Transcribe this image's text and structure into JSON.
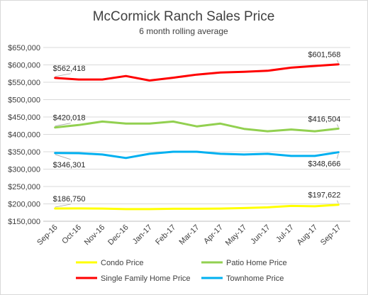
{
  "chart_data": {
    "type": "line",
    "title": "McCormick Ranch Sales Price",
    "subtitle": "6 month rolling average",
    "xlabel": "",
    "ylabel": "",
    "categories": [
      "Sep-16",
      "Oct-16",
      "Nov-16",
      "Dec-16",
      "Jan-17",
      "Feb-17",
      "Mar-17",
      "Apr-17",
      "May-17",
      "Jun-17",
      "Jul-17",
      "Aug-17",
      "Sep-17"
    ],
    "ylim": [
      150000,
      650000
    ],
    "yticks": [
      {
        "value": 150000,
        "label": "$150,000"
      },
      {
        "value": 200000,
        "label": "$200,000"
      },
      {
        "value": 250000,
        "label": "$250,000"
      },
      {
        "value": 300000,
        "label": "$300,000"
      },
      {
        "value": 350000,
        "label": "$350,000"
      },
      {
        "value": 400000,
        "label": "$400,000"
      },
      {
        "value": 450000,
        "label": "$450,000"
      },
      {
        "value": 500000,
        "label": "$500,000"
      },
      {
        "value": 550000,
        "label": "$550,000"
      },
      {
        "value": 600000,
        "label": "$600,000"
      },
      {
        "value": 650000,
        "label": "$650,000"
      }
    ],
    "grid": true,
    "legend_position": "bottom",
    "series": [
      {
        "name": "Condo Price",
        "color": "#ffff00",
        "values": [
          186750,
          187000,
          186500,
          185000,
          185000,
          186000,
          186000,
          186500,
          188000,
          190000,
          194000,
          193000,
          197622
        ],
        "labels": [
          {
            "index": 0,
            "text": "$186,750",
            "pos": "above"
          },
          {
            "index": 12,
            "text": "$197,622",
            "pos": "above"
          }
        ]
      },
      {
        "name": "Patio Home Price",
        "color": "#92d050",
        "values": [
          420018,
          427000,
          437000,
          431000,
          431000,
          437000,
          423000,
          431000,
          416000,
          409000,
          414000,
          409000,
          416504
        ],
        "labels": [
          {
            "index": 0,
            "text": "$420,018",
            "pos": "above"
          },
          {
            "index": 12,
            "text": "$416,504",
            "pos": "above"
          }
        ]
      },
      {
        "name": "Single Family Home Price",
        "color": "#ff0000",
        "values": [
          562418,
          558000,
          558000,
          568000,
          555000,
          563000,
          572000,
          578000,
          580000,
          583000,
          592000,
          597000,
          601568
        ],
        "labels": [
          {
            "index": 0,
            "text": "$562,418",
            "pos": "above"
          },
          {
            "index": 12,
            "text": "$601,568",
            "pos": "above"
          }
        ]
      },
      {
        "name": "Townhome Price",
        "color": "#00b0f0",
        "values": [
          346301,
          346000,
          342000,
          332000,
          344000,
          350000,
          350000,
          344000,
          342000,
          344000,
          338000,
          338000,
          348666
        ],
        "labels": [
          {
            "index": 0,
            "text": "$346,301",
            "pos": "below"
          },
          {
            "index": 12,
            "text": "$348,666",
            "pos": "below"
          }
        ]
      }
    ]
  }
}
